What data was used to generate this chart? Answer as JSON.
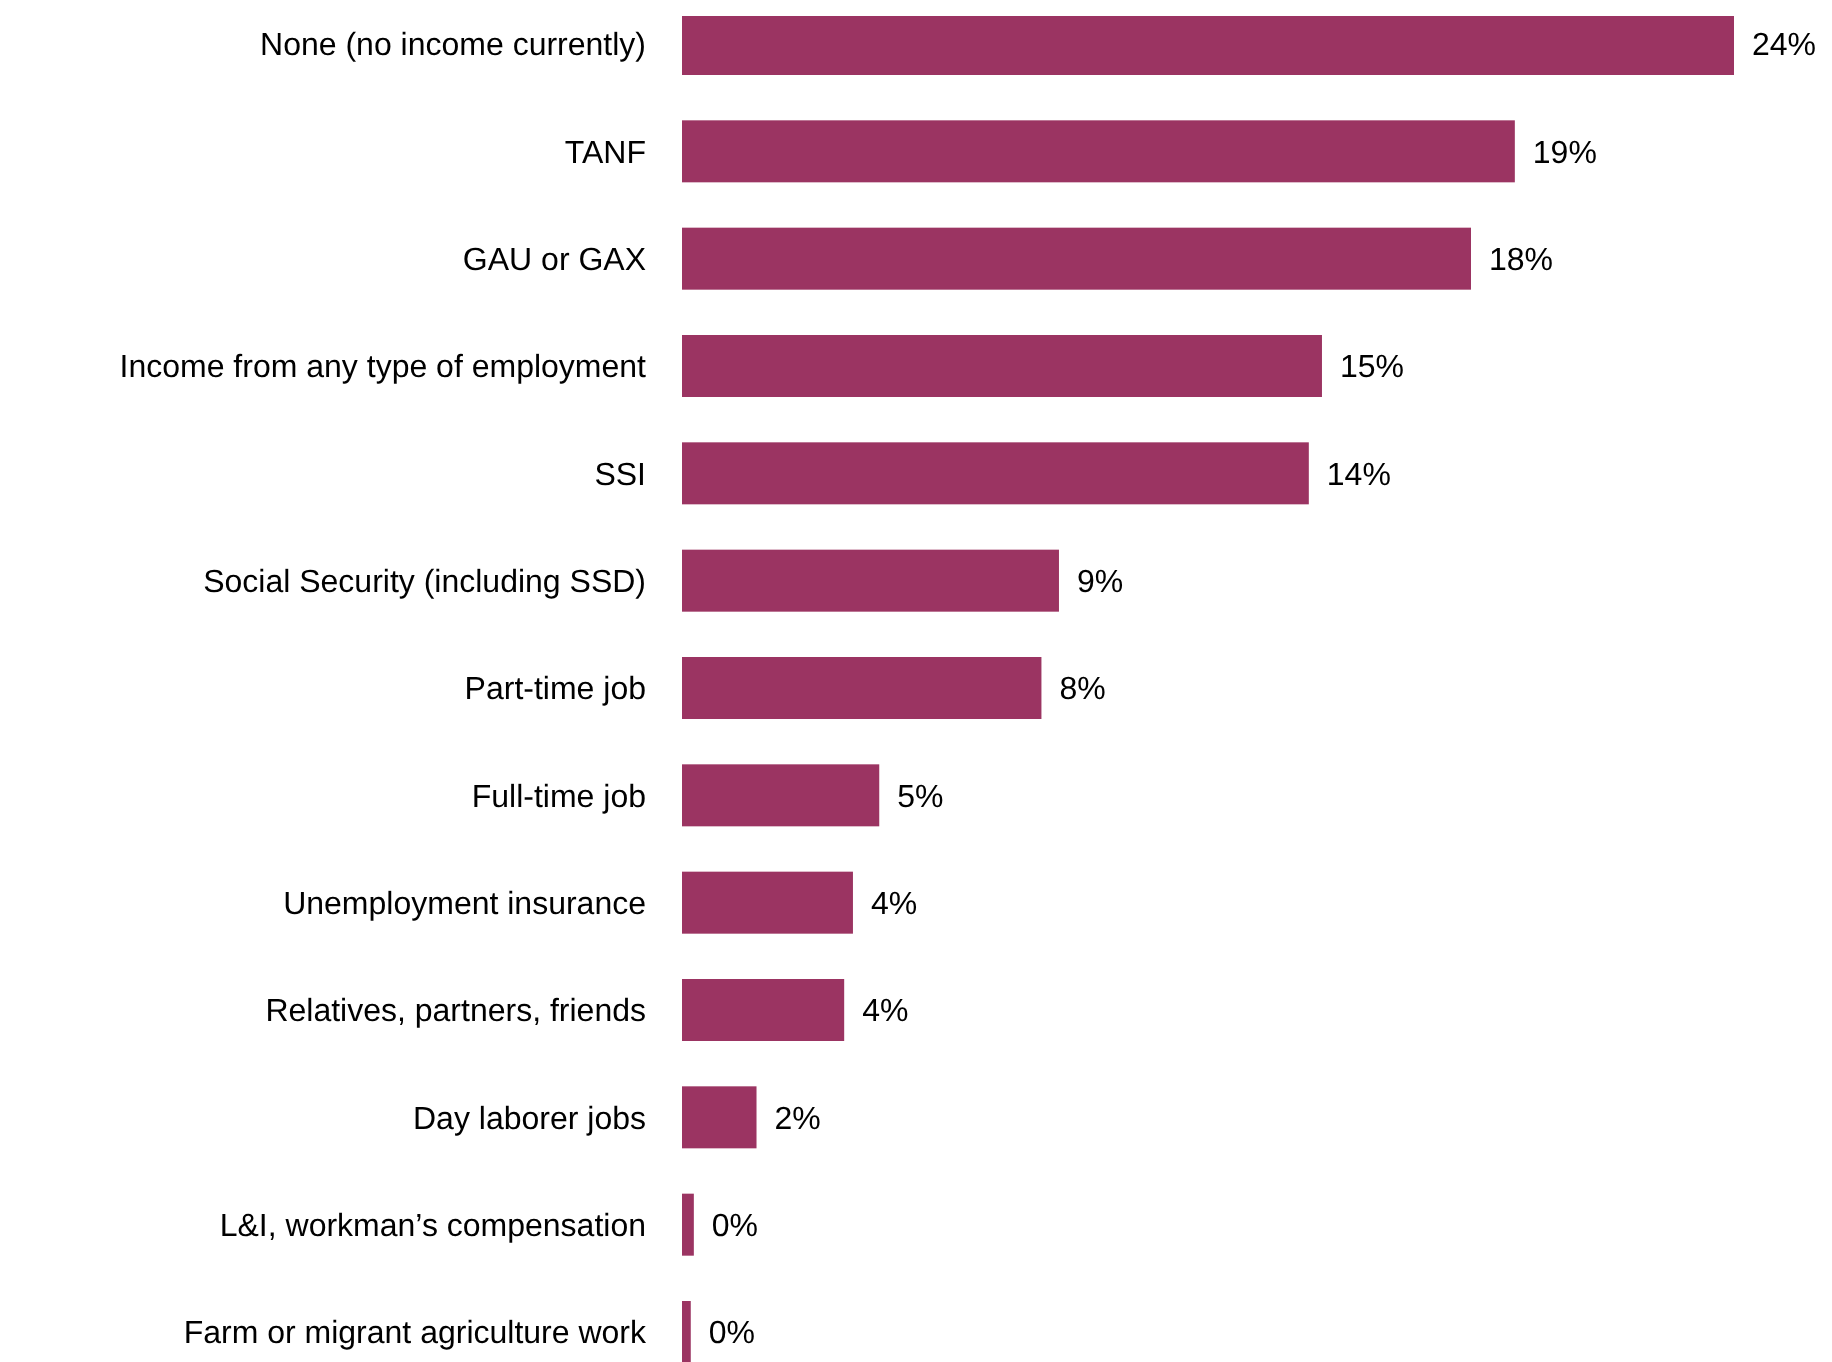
{
  "chart_data": {
    "type": "bar",
    "orientation": "horizontal",
    "categories": [
      "None (no income currently)",
      "TANF",
      "GAU or GAX",
      "Income from any type of employment",
      "SSI",
      "Social Security (including SSD)",
      "Part-time job",
      "Full-time job",
      "Unemployment insurance",
      "Relatives, partners, friends",
      "Day laborer jobs",
      "L&I, workman’s compensation",
      "Farm or migrant agriculture work"
    ],
    "values": [
      24,
      19,
      18,
      14.6,
      14.3,
      8.6,
      8.2,
      4.5,
      3.9,
      3.7,
      1.7,
      0.27,
      0.2
    ],
    "value_labels": [
      "24%",
      "19%",
      "18%",
      "15%",
      "14%",
      "9%",
      "8%",
      "5%",
      "4%",
      "4%",
      "2%",
      "0%",
      "0%"
    ],
    "color": "#9b3462"
  }
}
